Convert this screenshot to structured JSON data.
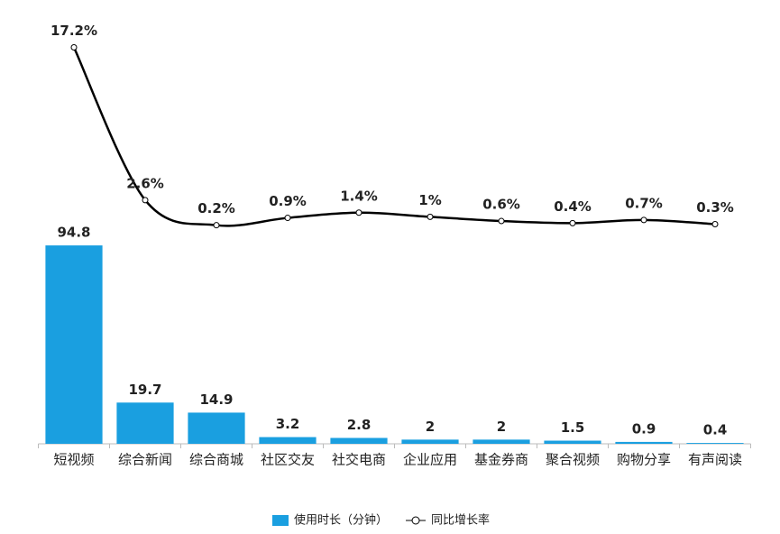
{
  "chart_data": {
    "type": "bar",
    "categories": [
      "短视频",
      "综合新闻",
      "综合商城",
      "社区交友",
      "社交电商",
      "企业应用",
      "基金券商",
      "聚合视频",
      "购物分享",
      "有声阅读"
    ],
    "series": [
      {
        "name": "使用时长（分钟）",
        "type": "bar",
        "color": "#1a9fe0",
        "values": [
          94.8,
          19.7,
          14.9,
          3.2,
          2.8,
          2,
          2,
          1.5,
          0.9,
          0.4
        ]
      },
      {
        "name": "同比增长率",
        "type": "line",
        "axis": "y2",
        "color": "#000000",
        "values": [
          17.2,
          2.6,
          0.2,
          0.9,
          1.4,
          1,
          0.6,
          0.4,
          0.7,
          0.3
        ],
        "value_labels": [
          "17.2%",
          "2.6%",
          "0.2%",
          "0.9%",
          "1.4%",
          "1%",
          "0.6%",
          "0.4%",
          "0.7%",
          "0.3%"
        ]
      }
    ],
    "ylim": [
      0,
      100
    ],
    "y2lim": [
      0,
      20
    ],
    "legend": "bottom"
  }
}
